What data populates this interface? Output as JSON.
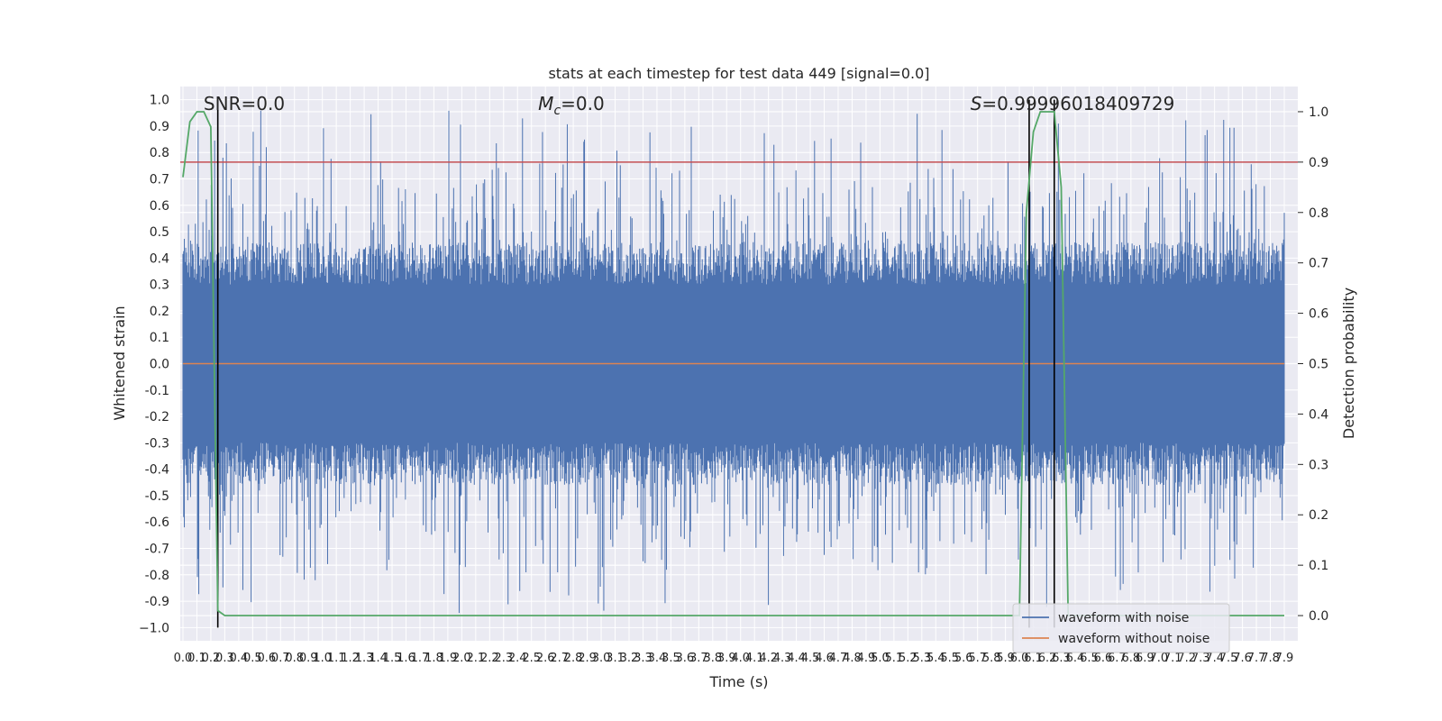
{
  "chart_data": {
    "type": "line",
    "title": "stats at each timestep for test data 449 [signal=0.0]",
    "xlabel": "Time (s)",
    "ylabel_left": "Whitened strain",
    "ylabel_right": "Detection probability",
    "xlim": [
      0.0,
      7.9
    ],
    "ylim_left": [
      -1.05,
      1.05
    ],
    "ylim_right": [
      -0.05,
      1.05
    ],
    "x_ticks": [
      "0.0",
      "0.1",
      "0.2",
      "0.3",
      "0.4",
      "0.5",
      "0.6",
      "0.7",
      "0.8",
      "0.9",
      "1.0",
      "1.1",
      "1.2",
      "1.3",
      "1.4",
      "1.5",
      "1.6",
      "1.7",
      "1.8",
      "1.9",
      "2.0",
      "2.1",
      "2.2",
      "2.3",
      "2.4",
      "2.5",
      "2.6",
      "2.7",
      "2.8",
      "2.9",
      "3.0",
      "3.1",
      "3.2",
      "3.3",
      "3.4",
      "3.5",
      "3.6",
      "3.7",
      "3.8",
      "3.9",
      "4.0",
      "4.1",
      "4.2",
      "4.3",
      "4.4",
      "4.5",
      "4.6",
      "4.7",
      "4.8",
      "4.9",
      "5.0",
      "5.1",
      "5.2",
      "5.3",
      "5.4",
      "5.5",
      "5.6",
      "5.7",
      "5.8",
      "5.9",
      "6.0",
      "6.1",
      "6.2",
      "6.3",
      "6.4",
      "6.5",
      "6.6",
      "6.7",
      "6.8",
      "6.9",
      "7.0",
      "7.1",
      "7.2",
      "7.3",
      "7.4",
      "7.5",
      "7.6",
      "7.7",
      "7.8",
      "7.9"
    ],
    "y_ticks_left": [
      "1.0",
      "0.9",
      "0.8",
      "0.7",
      "0.6",
      "0.5",
      "0.4",
      "0.3",
      "0.2",
      "0.1",
      "0.0",
      "-0.1",
      "-0.2",
      "-0.3",
      "-0.4",
      "-0.5",
      "-0.6",
      "-0.7",
      "-0.8",
      "-0.9",
      "−1.0"
    ],
    "y_tick_values_left": [
      1.0,
      0.9,
      0.8,
      0.7,
      0.6,
      0.5,
      0.4,
      0.3,
      0.2,
      0.1,
      0.0,
      -0.1,
      -0.2,
      -0.3,
      -0.4,
      -0.5,
      -0.6,
      -0.7,
      -0.8,
      -0.9,
      -1.0
    ],
    "y_ticks_right": [
      "1.0",
      "0.9",
      "0.8",
      "0.7",
      "0.6",
      "0.5",
      "0.4",
      "0.3",
      "0.2",
      "0.1",
      "0.0"
    ],
    "y_tick_values_right": [
      1.0,
      0.9,
      0.8,
      0.7,
      0.6,
      0.5,
      0.4,
      0.3,
      0.2,
      0.1,
      0.0
    ],
    "annotations": [
      {
        "text": "SNR=0.0",
        "x": 0.2
      },
      {
        "text": "M",
        "sub": "c",
        "suffix": "=0.0",
        "italic": true,
        "x": 2.6
      },
      {
        "text": "S",
        "suffix": "=0.99996018409729",
        "italic": true,
        "x": 5.7
      }
    ],
    "threshold_right": 0.9,
    "series": [
      {
        "name": "waveform with noise",
        "color": "#4c72b0",
        "axis": "left",
        "kind": "noise",
        "envelope": [
          -0.95,
          0.96
        ]
      },
      {
        "name": "waveform without noise",
        "color": "#dd8452",
        "axis": "left",
        "x": [
          0.0,
          7.9
        ],
        "y": [
          0.0,
          0.0
        ]
      },
      {
        "name": "",
        "color": "#55a868",
        "axis": "right",
        "x": [
          0.0,
          0.05,
          0.1,
          0.15,
          0.2,
          0.25,
          0.3,
          0.35,
          0.4,
          6.0,
          6.05,
          6.1,
          6.15,
          6.2,
          6.25,
          6.3,
          6.35,
          6.4,
          7.9
        ],
        "y": [
          0.87,
          0.98,
          1.0,
          1.0,
          0.97,
          0.01,
          0.0,
          0.0,
          0.0,
          0.0,
          0.8,
          0.96,
          1.0,
          1.0,
          1.0,
          0.85,
          0.0,
          0.0,
          0.0
        ]
      }
    ],
    "detection_markers": [
      0.25,
      6.07,
      6.25
    ],
    "legend": {
      "placement": "bottom-right",
      "entries": [
        "waveform with noise",
        "waveform without noise"
      ]
    },
    "grid": true,
    "colors": {
      "background": "#eaeaf2",
      "grid": "#ffffff",
      "threshold": "#c44e52",
      "marker": "#000000",
      "text": "#262626"
    }
  }
}
